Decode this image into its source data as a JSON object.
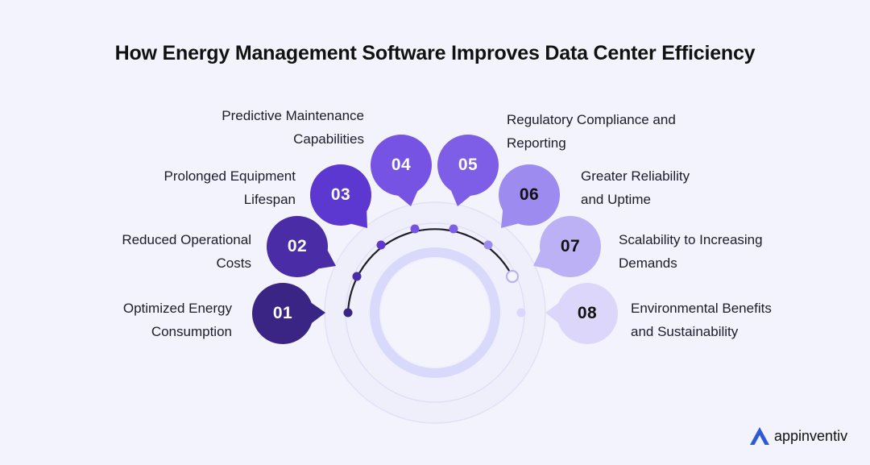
{
  "title": "How Energy Management Software Improves Data Center Efficiency",
  "steps": [
    {
      "number": "01",
      "lines": [
        "Optimized Energy",
        "Consumption"
      ],
      "color": "#3b2584",
      "text_color": "#ffffff"
    },
    {
      "number": "02",
      "lines": [
        "Reduced Operational",
        "Costs"
      ],
      "color": "#4a2ca7",
      "text_color": "#ffffff"
    },
    {
      "number": "03",
      "lines": [
        "Prolonged Equipment",
        "Lifespan"
      ],
      "color": "#5c37d0",
      "text_color": "#ffffff"
    },
    {
      "number": "04",
      "lines": [
        "Predictive Maintenance",
        "Capabilities"
      ],
      "color": "#7753e4",
      "text_color": "#ffffff"
    },
    {
      "number": "05",
      "lines": [
        "Regulatory Compliance and",
        "Reporting"
      ],
      "color": "#7e5ee6",
      "text_color": "#ffffff"
    },
    {
      "number": "06",
      "lines": [
        "Greater Reliability",
        "and Uptime"
      ],
      "color": "#9e8bef",
      "text_color": "#111111"
    },
    {
      "number": "07",
      "lines": [
        "Scalability to Increasing",
        "Demands"
      ],
      "color": "#bdb1f5",
      "text_color": "#111111"
    },
    {
      "number": "08",
      "lines": [
        "Environmental Benefits",
        "and Sustainability"
      ],
      "color": "#dcd7fa",
      "text_color": "#111111"
    }
  ],
  "brand": {
    "name": "appinventiv",
    "icon": "appinventiv-logo-icon",
    "color": "#2d5bd7"
  }
}
